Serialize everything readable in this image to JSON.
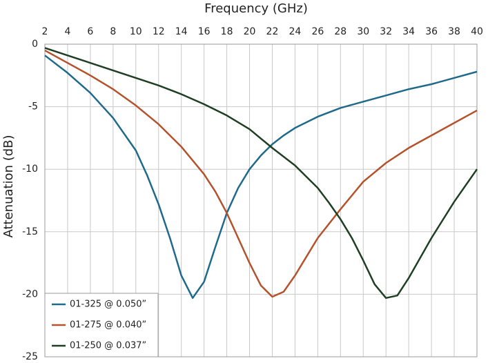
{
  "chart_data": {
    "type": "line",
    "x_label": "Frequency (GHz)",
    "y_label": "Attenuation (dB)",
    "xlim": [
      2,
      40
    ],
    "xticks": [
      2,
      4,
      6,
      8,
      10,
      12,
      14,
      16,
      18,
      20,
      22,
      24,
      26,
      28,
      30,
      32,
      34,
      36,
      38,
      40
    ],
    "ylim": [
      -25,
      0
    ],
    "yticks": [
      0,
      -5,
      -10,
      -15,
      -20,
      -25
    ],
    "grid": true,
    "legend": "lower left",
    "series": [
      {
        "name": "01-325 @ 0.050”",
        "color": "#1f6a8a",
        "x": [
          2,
          4,
          6,
          8,
          10,
          11,
          12,
          13,
          14,
          15,
          16,
          17,
          18,
          19,
          20,
          21,
          22,
          23,
          24,
          26,
          28,
          30,
          32,
          34,
          36,
          38,
          40
        ],
        "values": [
          -0.9,
          -2.3,
          -3.9,
          -5.9,
          -8.5,
          -10.5,
          -12.8,
          -15.5,
          -18.5,
          -20.3,
          -19.0,
          -16.2,
          -13.5,
          -11.5,
          -10.0,
          -8.9,
          -8.0,
          -7.3,
          -6.7,
          -5.8,
          -5.1,
          -4.6,
          -4.1,
          -3.6,
          -3.2,
          -2.7,
          -2.2
        ]
      },
      {
        "name": "01-275 @ 0.040”",
        "color": "#b5522b",
        "x": [
          2,
          4,
          6,
          8,
          10,
          12,
          14,
          16,
          17,
          18,
          19,
          20,
          21,
          22,
          23,
          24,
          25,
          26,
          28,
          30,
          32,
          34,
          36,
          38,
          40
        ],
        "values": [
          -0.5,
          -1.5,
          -2.5,
          -3.6,
          -4.9,
          -6.4,
          -8.2,
          -10.4,
          -11.8,
          -13.5,
          -15.5,
          -17.5,
          -19.3,
          -20.2,
          -19.8,
          -18.5,
          -17.0,
          -15.5,
          -13.2,
          -11.0,
          -9.5,
          -8.3,
          -7.3,
          -6.3,
          -5.3
        ]
      },
      {
        "name": "01-250 @ 0.037”",
        "color": "#1e3f22",
        "x": [
          2,
          4,
          6,
          8,
          10,
          12,
          14,
          16,
          18,
          20,
          22,
          24,
          26,
          27,
          28,
          29,
          30,
          31,
          32,
          33,
          34,
          36,
          38,
          40
        ],
        "values": [
          -0.3,
          -0.9,
          -1.5,
          -2.1,
          -2.7,
          -3.3,
          -4.0,
          -4.8,
          -5.7,
          -6.8,
          -8.3,
          -9.7,
          -11.5,
          -12.7,
          -14.0,
          -15.5,
          -17.3,
          -19.2,
          -20.3,
          -20.1,
          -18.7,
          -15.5,
          -12.6,
          -10.0
        ]
      }
    ]
  }
}
